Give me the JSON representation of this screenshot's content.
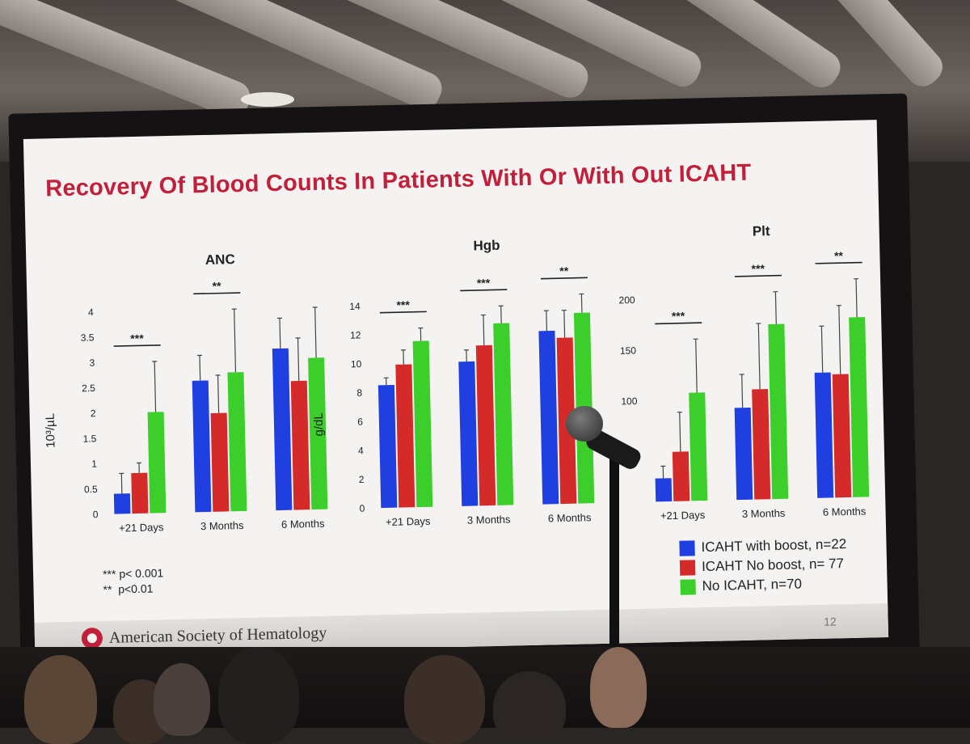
{
  "slide": {
    "title": "Recovery Of Blood Counts In Patients With Or With Out ICAHT",
    "footer": {
      "organization": "American Society of Hematology",
      "page_number": "12"
    },
    "significance_notes": [
      "*** p< 0.001",
      "**  p<0.01"
    ]
  },
  "legend": [
    {
      "label": "ICAHT with boost, n=22",
      "color": "#1f3fe0"
    },
    {
      "label": "ICAHT No boost, n= 77",
      "color": "#d42a2a"
    },
    {
      "label": "No ICAHT, n=70",
      "color": "#3ccf2c"
    }
  ],
  "chart_data": [
    {
      "type": "bar",
      "title": "ANC",
      "ylabel": "10³/µL",
      "ylim": [
        0,
        4
      ],
      "yticks": [
        "0",
        "0.5",
        "1",
        "1.5",
        "2",
        "2.5",
        "3",
        "3.5",
        "4"
      ],
      "categories": [
        "+21 Days",
        "3 Months",
        "6 Months"
      ],
      "series": [
        {
          "name": "ICAHT with boost, n=22",
          "values": [
            0.4,
            2.6,
            3.2
          ],
          "err_upper": [
            0.8,
            3.1,
            3.8
          ]
        },
        {
          "name": "ICAHT No boost, n= 77",
          "values": [
            0.8,
            1.95,
            2.55
          ],
          "err_upper": [
            1.0,
            2.7,
            3.4
          ]
        },
        {
          "name": "No ICAHT, n=70",
          "values": [
            2.0,
            2.75,
            3.0
          ],
          "err_upper": [
            3.0,
            4.0,
            4.0
          ]
        }
      ],
      "significance": [
        "***",
        "**",
        ""
      ]
    },
    {
      "type": "bar",
      "title": "Hgb",
      "ylabel": "g/dL",
      "ylim": [
        0,
        14
      ],
      "yticks": [
        "0",
        "2",
        "4",
        "6",
        "8",
        "10",
        "12",
        "14"
      ],
      "categories": [
        "+21 Days",
        "3 Months",
        "6 Months"
      ],
      "series": [
        {
          "name": "ICAHT with boost, n=22",
          "values": [
            8.5,
            10.0,
            12.0
          ],
          "err_upper": [
            9.0,
            10.8,
            13.4
          ]
        },
        {
          "name": "ICAHT No boost, n= 77",
          "values": [
            9.9,
            11.1,
            11.5
          ],
          "err_upper": [
            10.9,
            13.2,
            13.4
          ]
        },
        {
          "name": "No ICAHT, n=70",
          "values": [
            11.5,
            12.6,
            13.2
          ],
          "err_upper": [
            12.4,
            13.8,
            14.5
          ]
        }
      ],
      "significance": [
        "***",
        "***",
        "**"
      ]
    },
    {
      "type": "bar",
      "title": "Plt",
      "ylabel": "",
      "ylim": [
        0,
        200
      ],
      "yticks": [
        "100",
        "150",
        "200"
      ],
      "categories": [
        "+21 Days",
        "3 Months",
        "6 Months"
      ],
      "series": [
        {
          "name": "ICAHT with boost, n=22",
          "values": [
            23,
            91,
            124
          ],
          "err_upper": [
            35,
            124,
            170
          ]
        },
        {
          "name": "ICAHT No boost, n= 77",
          "values": [
            49,
            109,
            122
          ],
          "err_upper": [
            88,
            174,
            190
          ]
        },
        {
          "name": "No ICAHT, n=70",
          "values": [
            107,
            173,
            178
          ],
          "err_upper": [
            160,
            205,
            225
          ]
        }
      ],
      "significance": [
        "***",
        "***",
        "**"
      ]
    }
  ]
}
